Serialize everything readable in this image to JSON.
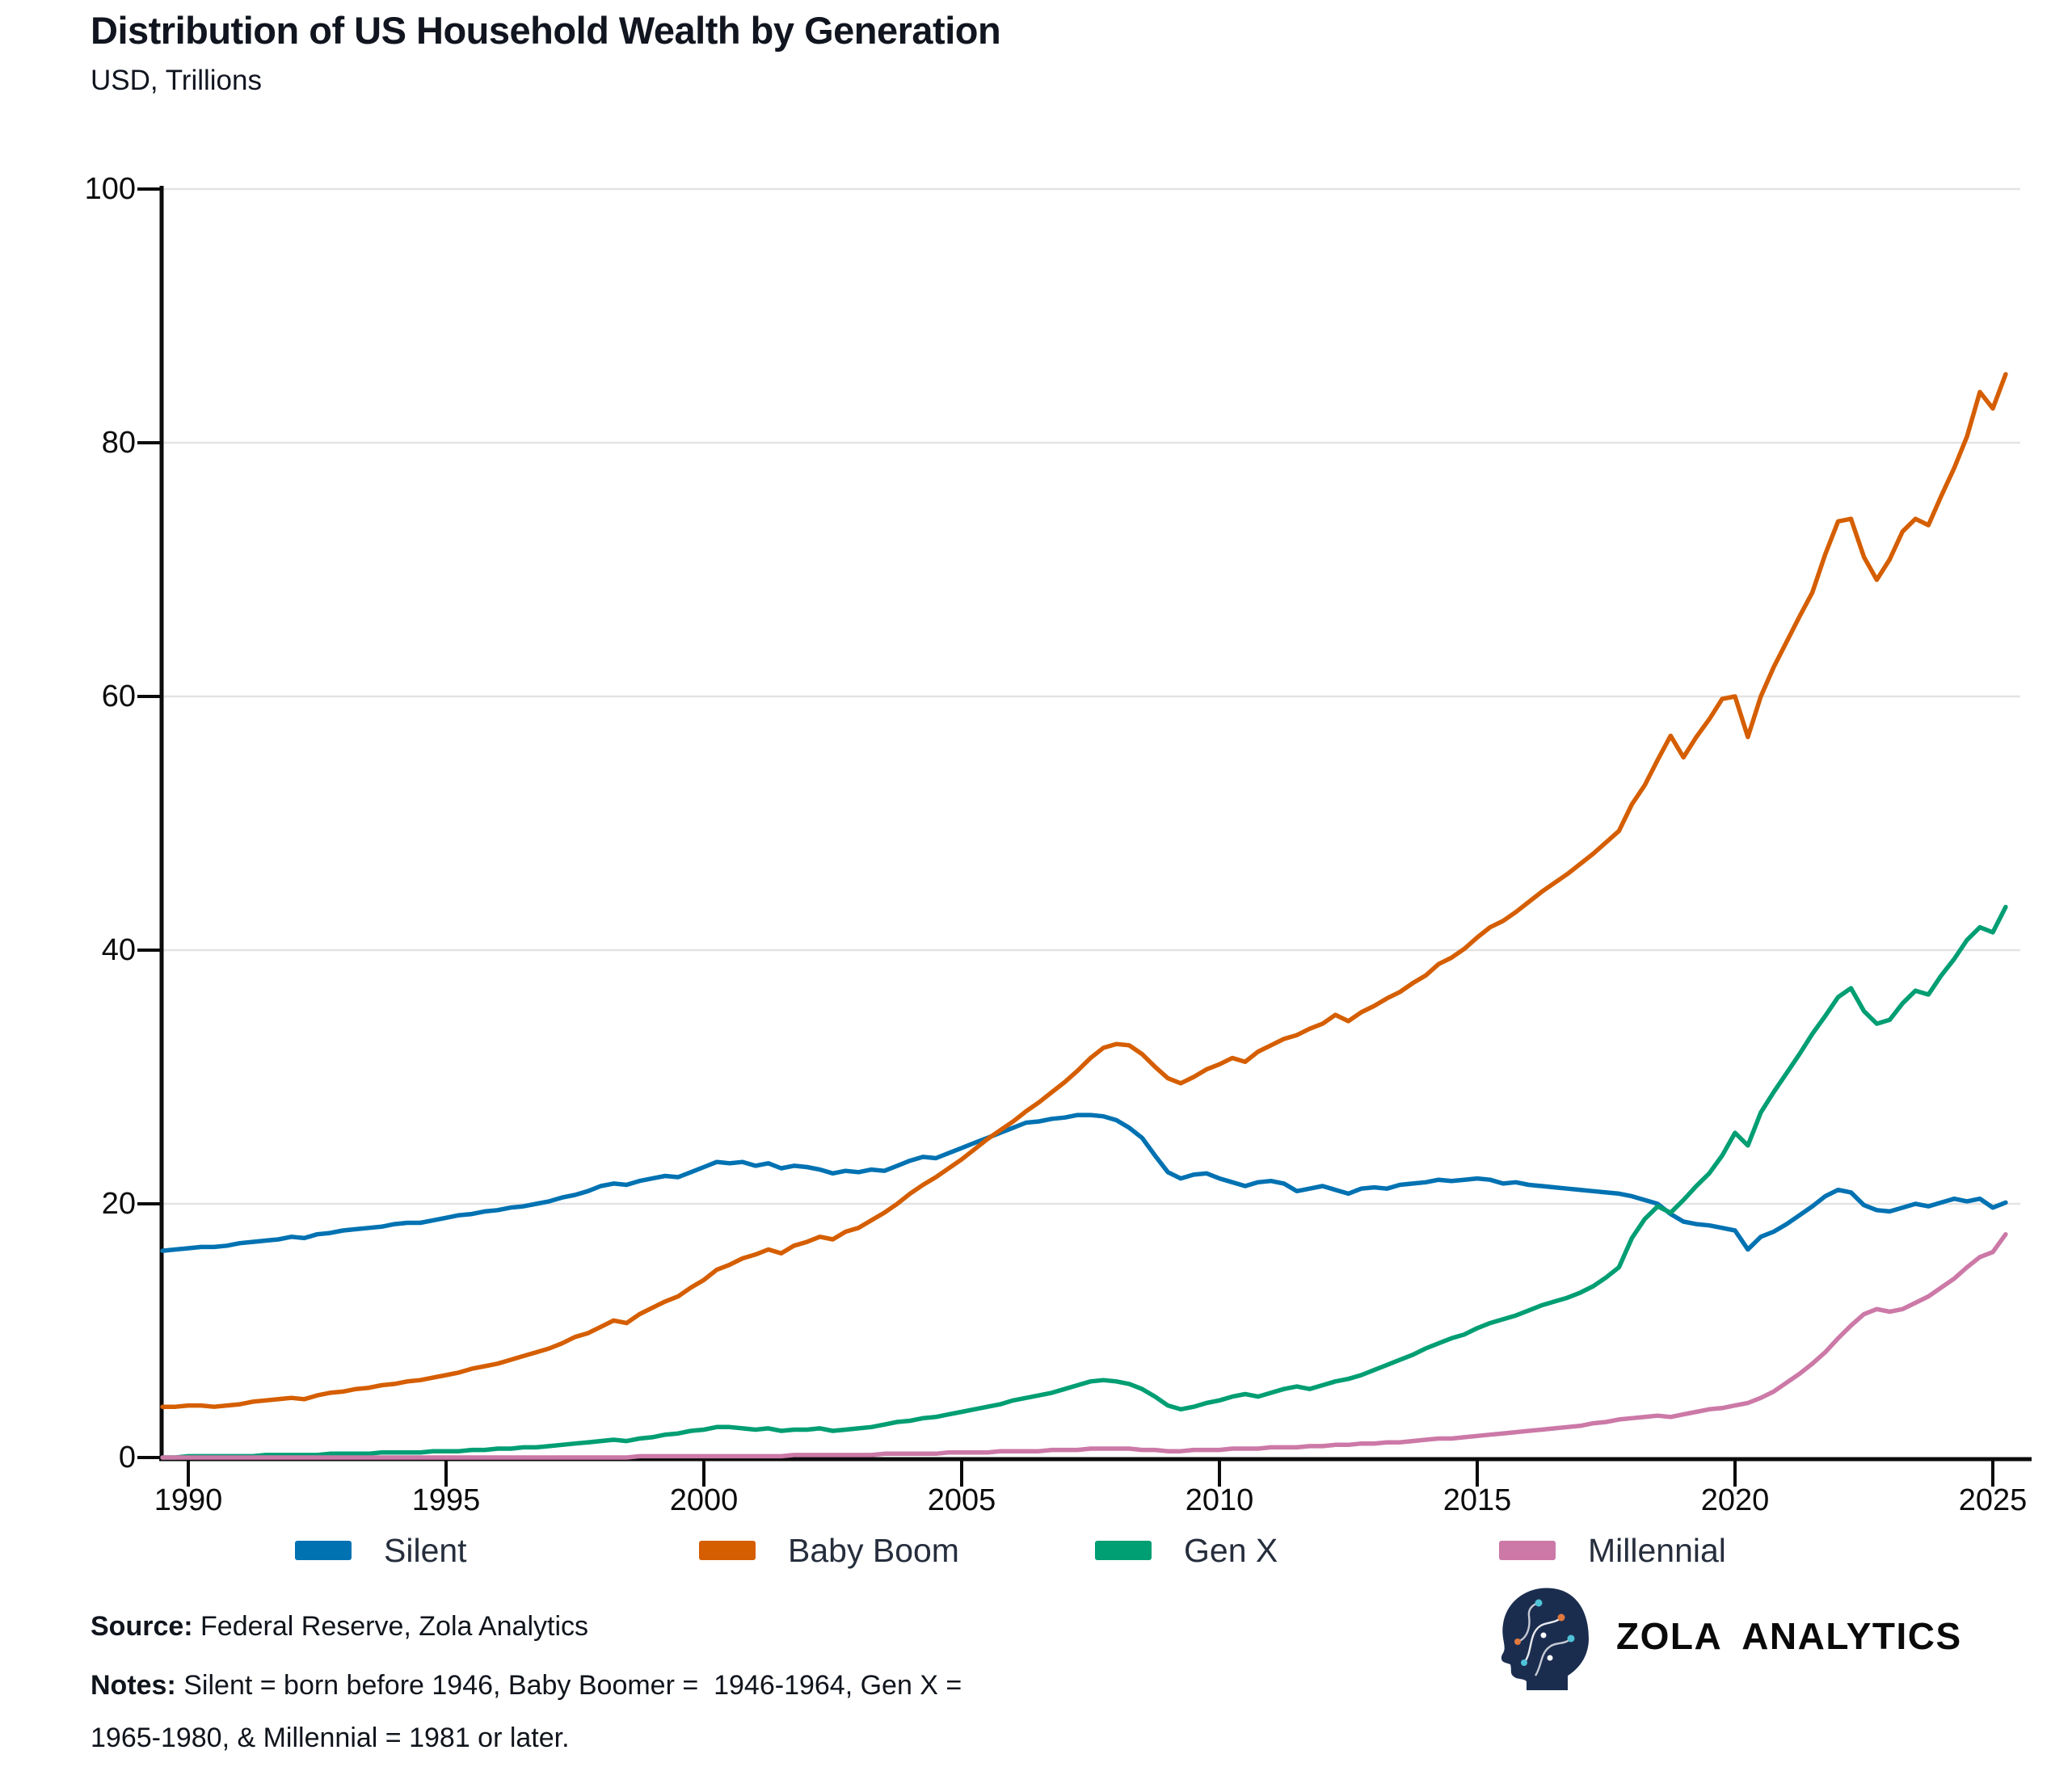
{
  "title": "Distribution of US Household Wealth by Generation",
  "subtitle": "USD, Trillions",
  "chart_data": {
    "type": "line",
    "title": "Distribution of US Household Wealth by Generation",
    "ylabel": "USD, Trillions",
    "xlabel": "",
    "x_start": 1989.5,
    "x_step": 0.25,
    "x_ticks": [
      1990,
      1995,
      2000,
      2005,
      2010,
      2015,
      2020,
      2025
    ],
    "y_ticks": [
      0,
      20,
      40,
      60,
      80,
      100
    ],
    "xlim": [
      1989.5,
      2025.6
    ],
    "ylim": [
      0,
      100
    ],
    "grid": true,
    "legend_position": "bottom",
    "series": [
      {
        "name": "Silent",
        "color": "#0072b2",
        "values": [
          16.3,
          16.4,
          16.5,
          16.6,
          16.6,
          16.7,
          16.9,
          17.0,
          17.1,
          17.2,
          17.4,
          17.3,
          17.6,
          17.7,
          17.9,
          18.0,
          18.1,
          18.2,
          18.4,
          18.5,
          18.5,
          18.7,
          18.9,
          19.1,
          19.2,
          19.4,
          19.5,
          19.7,
          19.8,
          20.0,
          20.2,
          20.5,
          20.7,
          21.0,
          21.4,
          21.6,
          21.5,
          21.8,
          22.0,
          22.2,
          22.1,
          22.5,
          22.9,
          23.3,
          23.2,
          23.3,
          23.0,
          23.2,
          22.8,
          23.0,
          22.9,
          22.7,
          22.4,
          22.6,
          22.5,
          22.7,
          22.6,
          23.0,
          23.4,
          23.7,
          23.6,
          24.0,
          24.4,
          24.8,
          25.2,
          25.6,
          26.0,
          26.4,
          26.5,
          26.7,
          26.8,
          27.0,
          27.0,
          26.9,
          26.6,
          26.0,
          25.2,
          23.8,
          22.5,
          22.0,
          22.3,
          22.4,
          22.0,
          21.7,
          21.4,
          21.7,
          21.8,
          21.6,
          21.0,
          21.2,
          21.4,
          21.1,
          20.8,
          21.2,
          21.3,
          21.2,
          21.5,
          21.6,
          21.7,
          21.9,
          21.8,
          21.9,
          22.0,
          21.9,
          21.6,
          21.7,
          21.5,
          21.4,
          21.3,
          21.2,
          21.1,
          21.0,
          20.9,
          20.8,
          20.6,
          20.3,
          20.0,
          19.2,
          18.6,
          18.4,
          18.3,
          18.1,
          17.9,
          16.4,
          17.4,
          17.8,
          18.4,
          19.1,
          19.8,
          20.6,
          21.1,
          20.9,
          19.9,
          19.5,
          19.4,
          19.7,
          20.0,
          19.8,
          20.1,
          20.4,
          20.2,
          20.4,
          19.7,
          20.1
        ]
      },
      {
        "name": "Baby Boom",
        "color": "#d55e00",
        "values": [
          4.0,
          4.0,
          4.1,
          4.1,
          4.0,
          4.1,
          4.2,
          4.4,
          4.5,
          4.6,
          4.7,
          4.6,
          4.9,
          5.1,
          5.2,
          5.4,
          5.5,
          5.7,
          5.8,
          6.0,
          6.1,
          6.3,
          6.5,
          6.7,
          7.0,
          7.2,
          7.4,
          7.7,
          8.0,
          8.3,
          8.6,
          9.0,
          9.5,
          9.8,
          10.3,
          10.8,
          10.6,
          11.3,
          11.8,
          12.3,
          12.7,
          13.4,
          14.0,
          14.8,
          15.2,
          15.7,
          16.0,
          16.4,
          16.1,
          16.7,
          17.0,
          17.4,
          17.2,
          17.8,
          18.1,
          18.7,
          19.3,
          20.0,
          20.8,
          21.5,
          22.1,
          22.8,
          23.5,
          24.3,
          25.1,
          25.8,
          26.5,
          27.3,
          28.0,
          28.8,
          29.6,
          30.5,
          31.5,
          32.3,
          32.6,
          32.5,
          31.8,
          30.8,
          29.9,
          29.5,
          30.0,
          30.6,
          31.0,
          31.5,
          31.2,
          32.0,
          32.5,
          33.0,
          33.3,
          33.8,
          34.2,
          34.9,
          34.4,
          35.1,
          35.6,
          36.2,
          36.7,
          37.4,
          38.0,
          38.9,
          39.4,
          40.1,
          41.0,
          41.8,
          42.3,
          43.0,
          43.8,
          44.6,
          45.3,
          46.0,
          46.8,
          47.6,
          48.5,
          49.4,
          51.5,
          53.0,
          55.0,
          56.9,
          55.2,
          56.8,
          58.2,
          59.8,
          60.0,
          56.8,
          60.0,
          62.3,
          64.3,
          66.3,
          68.2,
          71.2,
          73.8,
          74.0,
          71.0,
          69.2,
          70.8,
          73.0,
          74.0,
          73.5,
          75.8,
          78.0,
          80.5,
          84.0,
          82.7,
          85.4
        ]
      },
      {
        "name": "Gen X",
        "color": "#009e73",
        "values": [
          0.0,
          0.0,
          0.1,
          0.1,
          0.1,
          0.1,
          0.1,
          0.1,
          0.2,
          0.2,
          0.2,
          0.2,
          0.2,
          0.3,
          0.3,
          0.3,
          0.3,
          0.4,
          0.4,
          0.4,
          0.4,
          0.5,
          0.5,
          0.5,
          0.6,
          0.6,
          0.7,
          0.7,
          0.8,
          0.8,
          0.9,
          1.0,
          1.1,
          1.2,
          1.3,
          1.4,
          1.3,
          1.5,
          1.6,
          1.8,
          1.9,
          2.1,
          2.2,
          2.4,
          2.4,
          2.3,
          2.2,
          2.3,
          2.1,
          2.2,
          2.2,
          2.3,
          2.1,
          2.2,
          2.3,
          2.4,
          2.6,
          2.8,
          2.9,
          3.1,
          3.2,
          3.4,
          3.6,
          3.8,
          4.0,
          4.2,
          4.5,
          4.7,
          4.9,
          5.1,
          5.4,
          5.7,
          6.0,
          6.1,
          6.0,
          5.8,
          5.4,
          4.8,
          4.1,
          3.8,
          4.0,
          4.3,
          4.5,
          4.8,
          5.0,
          4.8,
          5.1,
          5.4,
          5.6,
          5.4,
          5.7,
          6.0,
          6.2,
          6.5,
          6.9,
          7.3,
          7.7,
          8.1,
          8.6,
          9.0,
          9.4,
          9.7,
          10.2,
          10.6,
          10.9,
          11.2,
          11.6,
          12.0,
          12.3,
          12.6,
          13.0,
          13.5,
          14.2,
          15.0,
          17.3,
          18.8,
          19.8,
          19.3,
          20.3,
          21.4,
          22.4,
          23.8,
          25.6,
          24.6,
          27.2,
          28.8,
          30.3,
          31.8,
          33.4,
          34.8,
          36.3,
          37.0,
          35.2,
          34.2,
          34.5,
          35.8,
          36.8,
          36.5,
          38.0,
          39.3,
          40.8,
          41.8,
          41.4,
          43.4
        ]
      },
      {
        "name": "Millennial",
        "color": "#cc79a7",
        "values": [
          0.0,
          0.0,
          0.0,
          0.0,
          0.0,
          0.0,
          0.0,
          0.0,
          0.0,
          0.0,
          0.0,
          0.0,
          0.0,
          0.0,
          0.0,
          0.0,
          0.0,
          0.0,
          0.0,
          0.0,
          0.0,
          0.0,
          0.0,
          0.0,
          0.0,
          0.0,
          0.0,
          0.0,
          0.0,
          0.0,
          0.0,
          0.0,
          0.0,
          0.0,
          0.0,
          0.0,
          0.0,
          0.1,
          0.1,
          0.1,
          0.1,
          0.1,
          0.1,
          0.1,
          0.1,
          0.1,
          0.1,
          0.1,
          0.1,
          0.2,
          0.2,
          0.2,
          0.2,
          0.2,
          0.2,
          0.2,
          0.3,
          0.3,
          0.3,
          0.3,
          0.3,
          0.4,
          0.4,
          0.4,
          0.4,
          0.5,
          0.5,
          0.5,
          0.5,
          0.6,
          0.6,
          0.6,
          0.7,
          0.7,
          0.7,
          0.7,
          0.6,
          0.6,
          0.5,
          0.5,
          0.6,
          0.6,
          0.6,
          0.7,
          0.7,
          0.7,
          0.8,
          0.8,
          0.8,
          0.9,
          0.9,
          1.0,
          1.0,
          1.1,
          1.1,
          1.2,
          1.2,
          1.3,
          1.4,
          1.5,
          1.5,
          1.6,
          1.7,
          1.8,
          1.9,
          2.0,
          2.1,
          2.2,
          2.3,
          2.4,
          2.5,
          2.7,
          2.8,
          3.0,
          3.1,
          3.2,
          3.3,
          3.2,
          3.4,
          3.6,
          3.8,
          3.9,
          4.1,
          4.3,
          4.7,
          5.2,
          5.9,
          6.6,
          7.4,
          8.3,
          9.4,
          10.4,
          11.3,
          11.7,
          11.5,
          11.7,
          12.2,
          12.7,
          13.4,
          14.1,
          15.0,
          15.8,
          16.2,
          17.6
        ]
      }
    ]
  },
  "footer": {
    "source_label": "Source:",
    "source_text": " Federal Reserve, Zola Analytics",
    "notes_label": "Notes:",
    "notes_text": " Silent = born before 1946, Baby Boomer =  1946-1964, Gen X = 1965-1980, & Millennial = 1981 or later.",
    "brand_word1": "ZOLA",
    "brand_word2": "ANALYTICS"
  },
  "colors": {
    "axis": "#0b0b0b",
    "grid": "#e3e3e3",
    "text": "#10151f"
  }
}
